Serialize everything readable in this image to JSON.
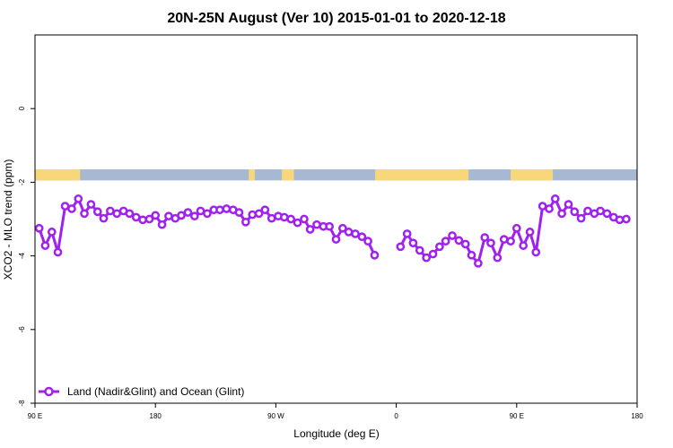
{
  "chart_data": {
    "type": "line",
    "title": "20N-25N August (Ver 10)   2015-01-01 to 2020-12-18",
    "xlabel": "Longitude (deg E)",
    "ylabel": "XCO2 - MLO trend (ppm)",
    "xlim": [
      0,
      1
    ],
    "ylim": [
      -8,
      2
    ],
    "x_ticks": [
      {
        "pos": 0.0,
        "label": "90 E"
      },
      {
        "pos": 0.2,
        "label": "180"
      },
      {
        "pos": 0.4,
        "label": "90 W"
      },
      {
        "pos": 0.6,
        "label": "0"
      },
      {
        "pos": 0.8,
        "label": "90 E"
      },
      {
        "pos": 1.0,
        "label": "180"
      }
    ],
    "y_ticks": [
      0,
      -2,
      -4,
      -6,
      -8
    ],
    "grid": false,
    "legend_position": "bottom-left",
    "series": [
      {
        "name": "Land (Nadir&Glint) and Ocean (Glint)",
        "color": "#a020f0",
        "segments": [
          [
            [
              0.007,
              -3.25
            ],
            [
              0.017,
              -3.72
            ],
            [
              0.028,
              -3.35
            ],
            [
              0.038,
              -3.9
            ],
            [
              0.05,
              -2.65
            ],
            [
              0.061,
              -2.72
            ],
            [
              0.072,
              -2.45
            ],
            [
              0.082,
              -2.85
            ],
            [
              0.093,
              -2.6
            ],
            [
              0.104,
              -2.8
            ],
            [
              0.114,
              -2.98
            ],
            [
              0.125,
              -2.78
            ],
            [
              0.136,
              -2.85
            ],
            [
              0.147,
              -2.78
            ],
            [
              0.157,
              -2.85
            ],
            [
              0.168,
              -2.95
            ],
            [
              0.179,
              -3.02
            ],
            [
              0.19,
              -3.0
            ],
            [
              0.2,
              -2.9
            ],
            [
              0.211,
              -3.15
            ],
            [
              0.222,
              -2.92
            ],
            [
              0.233,
              -2.98
            ],
            [
              0.243,
              -2.9
            ],
            [
              0.254,
              -2.82
            ],
            [
              0.265,
              -2.92
            ],
            [
              0.275,
              -2.78
            ],
            [
              0.286,
              -2.85
            ],
            [
              0.297,
              -2.75
            ],
            [
              0.307,
              -2.75
            ],
            [
              0.318,
              -2.72
            ],
            [
              0.329,
              -2.75
            ],
            [
              0.339,
              -2.82
            ],
            [
              0.35,
              -3.08
            ],
            [
              0.361,
              -2.88
            ],
            [
              0.372,
              -2.85
            ],
            [
              0.382,
              -2.75
            ],
            [
              0.393,
              -2.98
            ],
            [
              0.404,
              -2.92
            ],
            [
              0.414,
              -2.95
            ],
            [
              0.425,
              -3.0
            ],
            [
              0.436,
              -3.1
            ],
            [
              0.447,
              -3.0
            ],
            [
              0.457,
              -3.28
            ],
            [
              0.468,
              -3.15
            ],
            [
              0.479,
              -3.2
            ],
            [
              0.489,
              -3.2
            ],
            [
              0.5,
              -3.55
            ],
            [
              0.511,
              -3.25
            ],
            [
              0.521,
              -3.35
            ],
            [
              0.532,
              -3.4
            ],
            [
              0.543,
              -3.48
            ],
            [
              0.553,
              -3.6
            ],
            [
              0.564,
              -3.98
            ]
          ],
          [
            [
              0.607,
              -3.75
            ],
            [
              0.618,
              -3.4
            ],
            [
              0.628,
              -3.65
            ],
            [
              0.639,
              -3.85
            ],
            [
              0.65,
              -4.05
            ],
            [
              0.661,
              -3.95
            ],
            [
              0.672,
              -3.75
            ],
            [
              0.682,
              -3.6
            ],
            [
              0.693,
              -3.45
            ],
            [
              0.704,
              -3.58
            ],
            [
              0.715,
              -3.68
            ],
            [
              0.725,
              -3.98
            ],
            [
              0.736,
              -4.2
            ],
            [
              0.747,
              -3.5
            ],
            [
              0.757,
              -3.65
            ],
            [
              0.768,
              -4.05
            ],
            [
              0.779,
              -3.55
            ],
            [
              0.79,
              -3.6
            ],
            [
              0.8,
              -3.25
            ],
            [
              0.811,
              -3.72
            ],
            [
              0.822,
              -3.35
            ],
            [
              0.832,
              -3.9
            ],
            [
              0.843,
              -2.65
            ],
            [
              0.854,
              -2.72
            ],
            [
              0.864,
              -2.45
            ],
            [
              0.875,
              -2.85
            ],
            [
              0.886,
              -2.6
            ],
            [
              0.896,
              -2.8
            ],
            [
              0.907,
              -2.98
            ],
            [
              0.918,
              -2.78
            ],
            [
              0.929,
              -2.85
            ],
            [
              0.939,
              -2.78
            ],
            [
              0.95,
              -2.85
            ],
            [
              0.961,
              -2.95
            ],
            [
              0.971,
              -3.02
            ],
            [
              0.982,
              -3.0
            ]
          ]
        ]
      }
    ],
    "map_strip": {
      "y_top": -1.65,
      "y_bottom": -1.95,
      "ocean_color": "#a7b8d3",
      "land_color": "#f7d77a",
      "land_spans": [
        [
          0.0,
          0.075
        ],
        [
          0.355,
          0.365
        ],
        [
          0.41,
          0.43
        ],
        [
          0.565,
          0.72
        ],
        [
          0.79,
          0.86
        ]
      ]
    }
  }
}
